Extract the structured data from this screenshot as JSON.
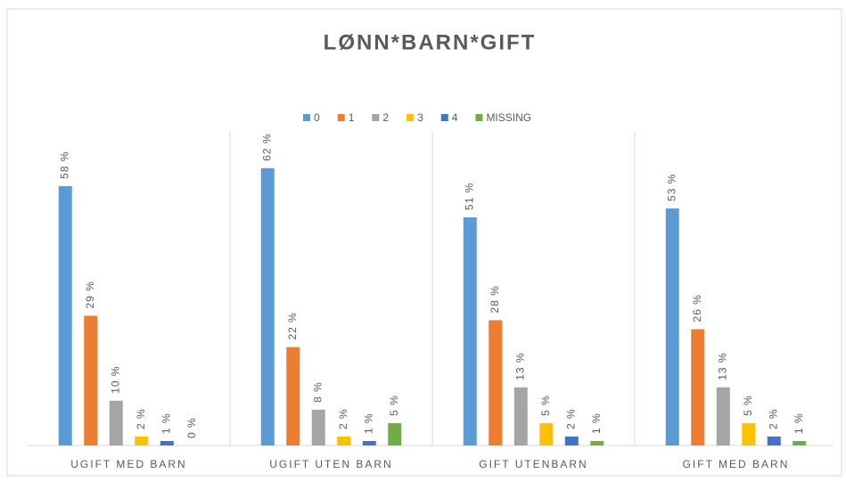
{
  "chart_data": {
    "type": "bar",
    "title": "LØNN*BARN*GIFT",
    "categories": [
      "UGIFT MED BARN",
      "UGIFT UTEN BARN",
      "GIFT UTENBARN",
      "GIFT MED BARN"
    ],
    "series": [
      {
        "name": "0",
        "color": "#5b9bd5",
        "values": [
          58,
          62,
          51,
          53
        ],
        "value_labels": [
          "58 %",
          "62 %",
          "51 %",
          "53 %"
        ]
      },
      {
        "name": "1",
        "color": "#ed7d31",
        "values": [
          29,
          22,
          28,
          26
        ],
        "value_labels": [
          "29 %",
          "22 %",
          "28 %",
          "26 %"
        ]
      },
      {
        "name": "2",
        "color": "#a5a5a5",
        "values": [
          10,
          8,
          13,
          13
        ],
        "value_labels": [
          "10 %",
          "8 %",
          "13 %",
          "13 %"
        ]
      },
      {
        "name": "3",
        "color": "#ffc000",
        "values": [
          2,
          2,
          5,
          5
        ],
        "value_labels": [
          "2 %",
          "2 %",
          "5 %",
          "5 %"
        ]
      },
      {
        "name": "4",
        "color": "#4472c4",
        "values": [
          1,
          1,
          2,
          2
        ],
        "value_labels": [
          "1 %",
          "1 %",
          "2 %",
          "2 %"
        ]
      },
      {
        "name": "MISSING",
        "color": "#70ad47",
        "values": [
          0,
          5,
          1,
          1
        ],
        "value_labels": [
          "0 %",
          "5 %",
          "1 %",
          "1 %"
        ]
      }
    ],
    "legend": "top"
  }
}
